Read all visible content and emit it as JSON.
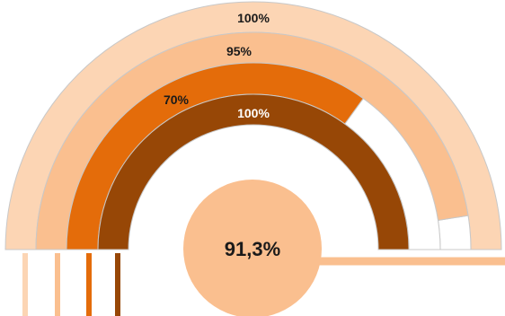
{
  "chart_data": {
    "type": "radial-bar",
    "series": [
      {
        "label": "100%",
        "value": 100,
        "color": "#fcd5b4"
      },
      {
        "label": "95%",
        "value": 95,
        "color": "#fabf8f"
      },
      {
        "label": "70%",
        "value": 70,
        "color": "#e46c0a"
      },
      {
        "label": "100%",
        "value": 100,
        "color": "#974706"
      }
    ],
    "range": [
      0,
      100
    ],
    "track_color": "#ffffff",
    "center": {
      "label": "91,3%",
      "value": 91.3,
      "color": "#fabf8f"
    }
  }
}
